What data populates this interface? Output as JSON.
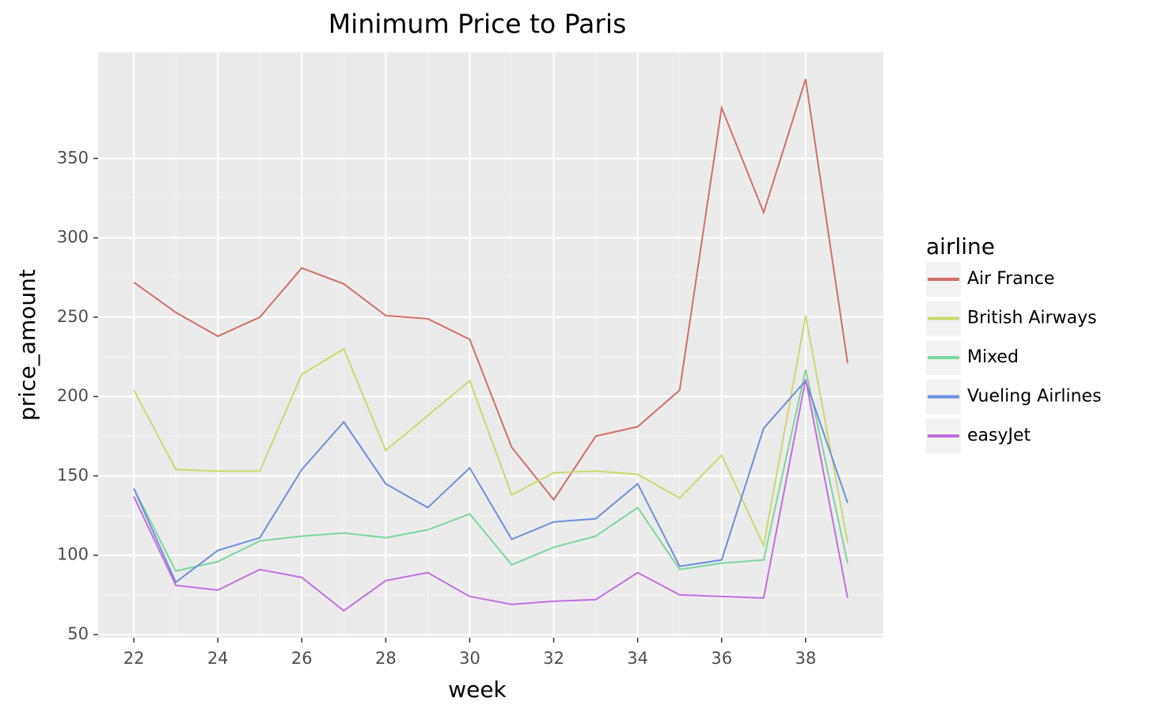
{
  "chart_data": {
    "type": "line",
    "title": "Minimum Price to Paris",
    "x_label": "week",
    "y_label": "price_amount",
    "legend_title": "airline",
    "x": [
      22,
      23,
      24,
      25,
      26,
      27,
      28,
      29,
      30,
      31,
      32,
      33,
      34,
      35,
      36,
      37,
      38,
      39
    ],
    "series": [
      {
        "name": "Air France",
        "color": "#d16f66",
        "values": [
          272,
          253,
          238,
          250,
          281,
          271,
          251,
          249,
          236,
          168,
          135,
          175,
          181,
          204,
          382,
          316,
          400,
          221
        ]
      },
      {
        "name": "British Airways",
        "color": "#c8da6b",
        "values": [
          204,
          154,
          153,
          153,
          214,
          230,
          166,
          188,
          210,
          138,
          152,
          153,
          151,
          136,
          163,
          106,
          251,
          108
        ]
      },
      {
        "name": "Mixed",
        "color": "#7ad79a",
        "values": [
          142,
          90,
          96,
          109,
          112,
          114,
          111,
          116,
          126,
          94,
          105,
          112,
          130,
          91,
          95,
          97,
          217,
          95
        ]
      },
      {
        "name": "Vueling Airlines",
        "color": "#6b8fde",
        "values": [
          142,
          83,
          103,
          111,
          154,
          184,
          145,
          130,
          155,
          110,
          121,
          123,
          145,
          93,
          97,
          180,
          210,
          133
        ]
      },
      {
        "name": "easyJet",
        "color": "#c06ee0",
        "values": [
          137,
          81,
          78,
          91,
          86,
          65,
          84,
          89,
          74,
          69,
          71,
          72,
          89,
          75,
          74,
          73,
          211,
          73
        ]
      }
    ],
    "xlim": [
      21.15,
      39.85
    ],
    "ylim": [
      48,
      417
    ],
    "xticks": [
      22,
      24,
      26,
      28,
      30,
      32,
      34,
      36,
      38
    ],
    "yticks": [
      50,
      100,
      150,
      200,
      250,
      300,
      350
    ],
    "grid": true,
    "minor_grid": true,
    "legend_position": "right"
  }
}
